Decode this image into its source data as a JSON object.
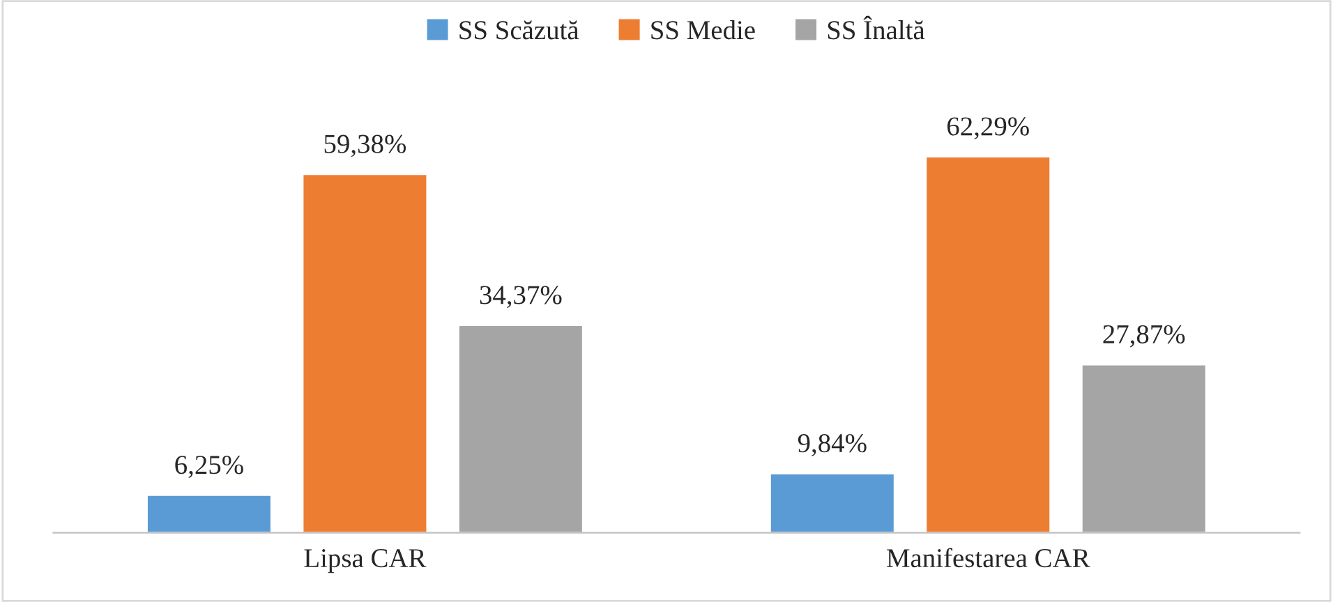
{
  "chart_data": {
    "type": "bar",
    "categories": [
      "Lipsa CAR",
      "Manifestarea CAR"
    ],
    "series": [
      {
        "name": "SS Scăzută",
        "color": "#5b9bd5",
        "values": [
          6.25,
          9.84
        ],
        "value_labels": [
          "6,25%",
          "9,84%"
        ]
      },
      {
        "name": "SS Medie",
        "color": "#ed7d31",
        "values": [
          59.38,
          62.29
        ],
        "value_labels": [
          "59,38%",
          "62,29%"
        ]
      },
      {
        "name": "SS Înaltă",
        "color": "#a5a5a5",
        "values": [
          34.37,
          27.87
        ],
        "value_labels": [
          "34,37%",
          "27,87%"
        ]
      }
    ],
    "legend": "top",
    "grid": false
  }
}
